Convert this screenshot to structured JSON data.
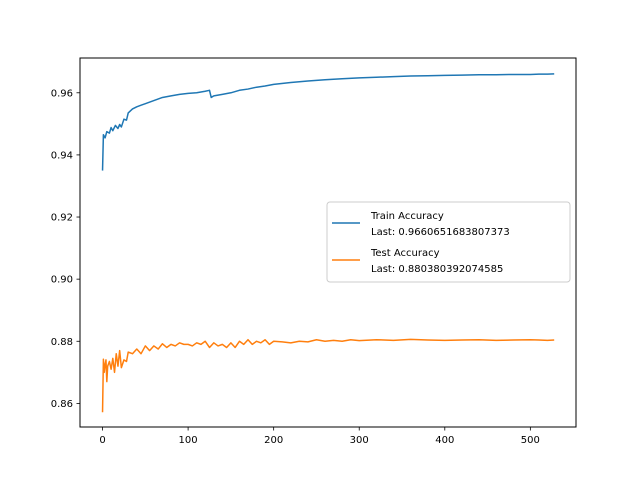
{
  "chart_data": {
    "type": "line",
    "title": "",
    "xlabel": "",
    "ylabel": "",
    "xlim": [
      -26.35,
      553.35
    ],
    "ylim": [
      0.8524,
      0.9712
    ],
    "grid": false,
    "legend_placement": "center-right",
    "x_ticks": [
      0,
      100,
      200,
      300,
      400,
      500
    ],
    "x_tick_labels": [
      "0",
      "100",
      "200",
      "300",
      "400",
      "500"
    ],
    "y_ticks": [
      0.86,
      0.88,
      0.9,
      0.92,
      0.94,
      0.96
    ],
    "y_tick_labels": [
      "0.86",
      "0.88",
      "0.90",
      "0.92",
      "0.94",
      "0.96"
    ],
    "series": [
      {
        "name": "Train Accuracy",
        "last_label": "Last: 0.9660651683807373",
        "color": "#1f77b4",
        "x": [
          0,
          1,
          3,
          5,
          8,
          10,
          12,
          15,
          18,
          20,
          22,
          25,
          28,
          30,
          35,
          40,
          45,
          50,
          60,
          70,
          80,
          90,
          100,
          110,
          120,
          125,
          127,
          130,
          140,
          150,
          160,
          170,
          180,
          190,
          200,
          220,
          240,
          260,
          280,
          300,
          320,
          340,
          360,
          380,
          400,
          420,
          440,
          460,
          480,
          500,
          510,
          520,
          527
        ],
        "y": [
          0.9352,
          0.9465,
          0.9455,
          0.9475,
          0.947,
          0.9488,
          0.9478,
          0.9495,
          0.9485,
          0.9498,
          0.949,
          0.9515,
          0.9512,
          0.9535,
          0.9548,
          0.9555,
          0.956,
          0.9565,
          0.9575,
          0.9585,
          0.959,
          0.9595,
          0.9598,
          0.96,
          0.9605,
          0.9608,
          0.9585,
          0.959,
          0.9595,
          0.96,
          0.9608,
          0.9612,
          0.9618,
          0.9622,
          0.9627,
          0.9633,
          0.9638,
          0.9642,
          0.9645,
          0.9648,
          0.965,
          0.9652,
          0.9654,
          0.9655,
          0.9656,
          0.9657,
          0.9658,
          0.9658,
          0.9659,
          0.9659,
          0.966,
          0.966,
          0.96607
        ]
      },
      {
        "name": "Test Accuracy",
        "last_label": "Last: 0.880380392074585",
        "color": "#ff7f0e",
        "x": [
          0,
          1,
          2,
          3,
          4,
          5,
          6,
          8,
          10,
          12,
          14,
          16,
          18,
          20,
          22,
          25,
          28,
          30,
          35,
          40,
          45,
          50,
          55,
          60,
          65,
          70,
          75,
          80,
          85,
          90,
          95,
          100,
          105,
          110,
          115,
          120,
          125,
          130,
          135,
          140,
          145,
          150,
          155,
          160,
          165,
          170,
          175,
          180,
          185,
          190,
          195,
          200,
          210,
          220,
          230,
          240,
          250,
          260,
          270,
          280,
          290,
          300,
          320,
          340,
          360,
          380,
          400,
          420,
          440,
          460,
          480,
          500,
          510,
          520,
          527
        ],
        "y": [
          0.8574,
          0.8742,
          0.87,
          0.8725,
          0.874,
          0.867,
          0.872,
          0.8735,
          0.871,
          0.8745,
          0.87,
          0.876,
          0.872,
          0.877,
          0.8715,
          0.874,
          0.8735,
          0.8765,
          0.876,
          0.8775,
          0.876,
          0.8785,
          0.877,
          0.8785,
          0.8775,
          0.8792,
          0.878,
          0.879,
          0.8785,
          0.8795,
          0.879,
          0.879,
          0.8785,
          0.8795,
          0.879,
          0.88,
          0.878,
          0.8795,
          0.8785,
          0.879,
          0.878,
          0.8795,
          0.878,
          0.88,
          0.879,
          0.8805,
          0.879,
          0.88,
          0.8795,
          0.8805,
          0.879,
          0.88,
          0.8798,
          0.8795,
          0.88,
          0.8798,
          0.8805,
          0.88,
          0.8803,
          0.88,
          0.8805,
          0.8802,
          0.8805,
          0.8803,
          0.8806,
          0.8804,
          0.8803,
          0.8804,
          0.8805,
          0.8803,
          0.8804,
          0.8805,
          0.8804,
          0.8803,
          0.88038
        ]
      }
    ]
  }
}
